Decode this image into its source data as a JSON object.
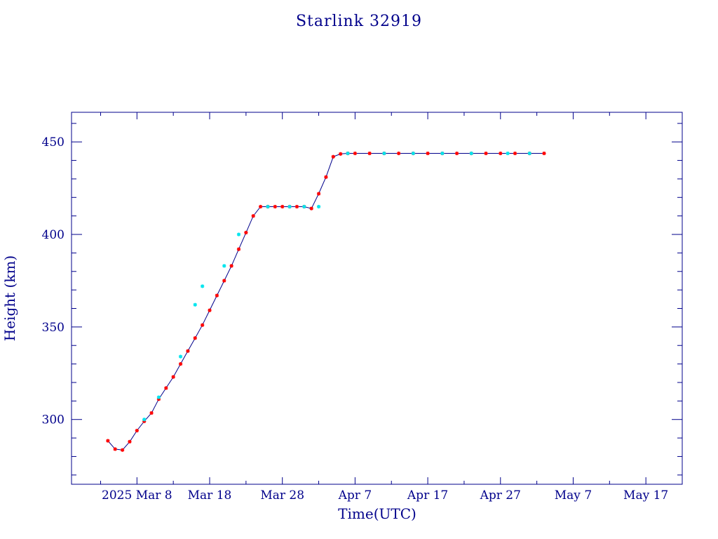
{
  "chart_data": {
    "type": "line",
    "title": "Starlink 32919",
    "xlabel": "Time(UTC)",
    "ylabel": "Height (km)",
    "x_tick_labels": [
      "2025 Mar  8",
      "Mar 18",
      "Mar 28",
      "Apr  7",
      "Apr 17",
      "Apr 27",
      "May  7",
      "May 17"
    ],
    "x_tick_dates": [
      "2025-03-08",
      "2025-03-18",
      "2025-03-28",
      "2025-04-07",
      "2025-04-17",
      "2025-04-27",
      "2025-05-07",
      "2025-05-17"
    ],
    "xlim": [
      "2025-02-27",
      "2025-05-22"
    ],
    "ylim": [
      265,
      466
    ],
    "y_ticks": [
      300,
      350,
      400,
      450
    ],
    "grid": false,
    "colors": {
      "axes": "#00008b",
      "line": "#00008b",
      "marker_primary": "#ff0000",
      "marker_secondary": "#00e5ee"
    },
    "series": [
      {
        "line_color": "#00008b",
        "marker_color": "#ff0000",
        "x": [
          "2025-03-04",
          "2025-03-05",
          "2025-03-06",
          "2025-03-07",
          "2025-03-08",
          "2025-03-09",
          "2025-03-10",
          "2025-03-11",
          "2025-03-12",
          "2025-03-13",
          "2025-03-14",
          "2025-03-15",
          "2025-03-16",
          "2025-03-17",
          "2025-03-18",
          "2025-03-19",
          "2025-03-20",
          "2025-03-21",
          "2025-03-22",
          "2025-03-23",
          "2025-03-24",
          "2025-03-25",
          "2025-03-26",
          "2025-03-27",
          "2025-03-28",
          "2025-03-29",
          "2025-03-30",
          "2025-03-31",
          "2025-04-01",
          "2025-04-02",
          "2025-04-03",
          "2025-04-04",
          "2025-04-05",
          "2025-04-06",
          "2025-04-07",
          "2025-04-09",
          "2025-04-11",
          "2025-04-13",
          "2025-04-15",
          "2025-04-17",
          "2025-04-19",
          "2025-04-21",
          "2025-04-23",
          "2025-04-25",
          "2025-04-27",
          "2025-04-29",
          "2025-05-01",
          "2025-05-03"
        ],
        "y": [
          288.5,
          284,
          283.5,
          288,
          294,
          299,
          303.5,
          311,
          317,
          323,
          330,
          337,
          344,
          351,
          359,
          367,
          375,
          383,
          392,
          401,
          410,
          415,
          415,
          415,
          415,
          415,
          415,
          415,
          414,
          422,
          431,
          442,
          443.5,
          443.8,
          443.8,
          443.8,
          443.8,
          443.8,
          443.8,
          443.8,
          443.8,
          443.8,
          443.8,
          443.8,
          443.8,
          443.8,
          443.8,
          443.8
        ]
      },
      {
        "marker_color": "#00e5ee",
        "x": [
          "2025-03-09",
          "2025-03-11",
          "2025-03-14",
          "2025-03-16",
          "2025-03-17",
          "2025-03-20",
          "2025-03-22",
          "2025-03-26",
          "2025-03-29",
          "2025-03-31",
          "2025-04-02",
          "2025-04-06",
          "2025-04-11",
          "2025-04-15",
          "2025-04-19",
          "2025-04-23",
          "2025-04-28",
          "2025-05-01"
        ],
        "y": [
          300,
          312,
          334,
          362,
          372,
          383,
          400,
          415,
          415,
          415,
          415,
          443.8,
          443.8,
          443.8,
          443.8,
          443.8,
          443.8,
          443.8
        ]
      }
    ]
  }
}
